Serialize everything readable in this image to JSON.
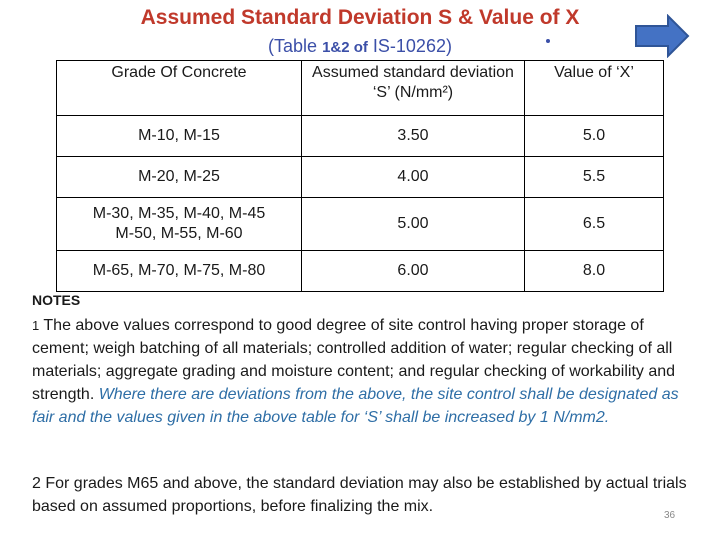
{
  "title": "Assumed Standard Deviation S & Value of X",
  "subtitle": {
    "prefix": "(Table ",
    "bold": "1&2 of",
    "suffix": " IS-10262)"
  },
  "colors": {
    "title": "#c0392b",
    "subtitle": "#3b4fa8",
    "arrow": "#4472c4",
    "note_italic": "#2e6ea6"
  },
  "arrow_icon": "right-arrow-icon",
  "table": {
    "headers": [
      "Grade Of Concrete",
      "Assumed standard deviation ‘S’ (N/mm²)",
      "Value of ‘X’"
    ],
    "rows": [
      {
        "grade": "M-10, M-15",
        "grade2": "",
        "s": "3.50",
        "x": "5.0"
      },
      {
        "grade": "M-20, M-25",
        "grade2": "",
        "s": "4.00",
        "x": "5.5"
      },
      {
        "grade": "M-30, M-35, M-40, M-45",
        "grade2": "M-50, M-55, M-60",
        "s": "5.00",
        "x": "6.5"
      },
      {
        "grade": "M-65, M-70, M-75, M-80",
        "grade2": "",
        "s": "6.00",
        "x": "8.0"
      }
    ]
  },
  "notes": {
    "label": "NOTES",
    "note1_number": "1",
    "note1_text": " The above values correspond to good degree of site control having proper storage of cement; weigh batching of all materials; controlled addition of water; regular checking of all materials; aggregate grading and moisture content; and regular checking of workability and strength. ",
    "note1_italic": "Where there are deviations from the above, the site control shall be designated as fair and the values given in the above table for ‘S’ shall be increased by 1 N/mm2.",
    "note2_text": "2 For grades M65 and above, the standard deviation may also be established by actual trials based on assumed proportions, before finalizing the mix."
  },
  "page_number": "36"
}
